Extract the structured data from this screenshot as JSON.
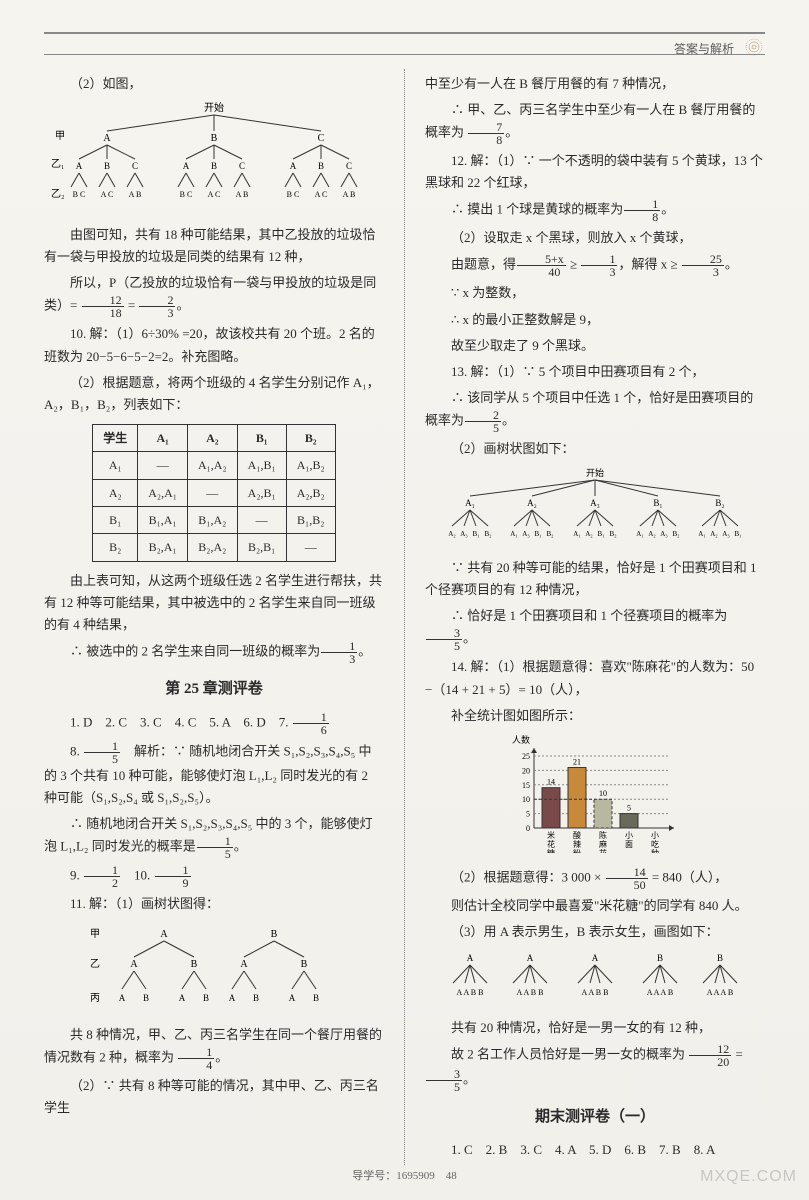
{
  "header": {
    "title": "答案与解析"
  },
  "left": {
    "p1": "（2）如图，",
    "tree1": {
      "root": "开始",
      "level1_label": "甲",
      "level1": [
        "A",
        "B",
        "C"
      ],
      "level2_label": "乙₁",
      "level2": [
        "A",
        "B",
        "C"
      ],
      "level3_label": "乙₂",
      "level3_groups": [
        [
          "B C",
          "A C",
          "A B"
        ],
        [
          "B C",
          "A C",
          "A B"
        ],
        [
          "B C",
          "A C",
          "A B"
        ]
      ]
    },
    "p2a": "由图可知，共有 18 种可能结果，其中乙投放的垃圾恰有一袋与甲投放的垃圾是同类的结果有 12 种，",
    "p2b_pre": "所以，P（乙投放的垃圾恰有一袋与甲投放的垃圾是同类）= ",
    "p2b_f1": {
      "n": "12",
      "d": "18"
    },
    "p2b_mid": " = ",
    "p2b_f2": {
      "n": "2",
      "d": "3"
    },
    "p2b_post": "。",
    "p3a": "10. 解：（1）6÷30% =20，故该校共有 20 个班。2 名的班数为 20−5−6−5−2=2。补充图略。",
    "p3b": "（2）根据题意，将两个班级的 4 名学生分别记作 A₁，A₂，B₁，B₂，列表如下：",
    "table": {
      "headers": [
        "学生",
        "A₁",
        "A₂",
        "B₁",
        "B₂"
      ],
      "rows": [
        [
          "A₁",
          "—",
          "A₁,A₂",
          "A₁,B₁",
          "A₁,B₂"
        ],
        [
          "A₂",
          "A₂,A₁",
          "—",
          "A₂,B₁",
          "A₂,B₂"
        ],
        [
          "B₁",
          "B₁,A₁",
          "B₁,A₂",
          "—",
          "B₁,B₂"
        ],
        [
          "B₂",
          "B₂,A₁",
          "B₂,A₂",
          "B₂,B₁",
          "—"
        ]
      ]
    },
    "p4": "由上表可知，从这两个班级任选 2 名学生进行帮扶，共有 12 种等可能结果，其中被选中的 2 名学生来自同一班级的有 4 种结果，",
    "p5_pre": "∴ 被选中的 2 名学生来自同一班级的概率为",
    "p5_f": {
      "n": "1",
      "d": "3"
    },
    "p5_post": "。",
    "section": "第 25 章测评卷",
    "q_line1_a": "1. D　2. C　3. C　4. C　5. A　6. D　7. ",
    "q_line1_f": {
      "n": "1",
      "d": "6"
    },
    "q8_pre": "8. ",
    "q8_f": {
      "n": "1",
      "d": "5"
    },
    "q8_mid": "　解析：∵ 随机地闭合开关 S₁,S₂,S₃,S₄,S₅ 中的 3 个共有 10 种可能，能够使灯泡 L₁,L₂ 同时发光的有 2 种可能（S₁,S₂,S₄ 或 S₁,S₂,S₅）。",
    "q8b_pre": "∴ 随机地闭合开关 S₁,S₂,S₃,S₄,S₅ 中的 3 个，能够使灯泡 L₁,L₂ 同时发光的概率是",
    "q8b_f": {
      "n": "1",
      "d": "5"
    },
    "q8b_post": "。",
    "q9_pre": "9. ",
    "q9_f": {
      "n": "1",
      "d": "2"
    },
    "q10_pre": "　10. ",
    "q10_f": {
      "n": "1",
      "d": "9"
    },
    "q11": "11. 解：（1）画树状图得：",
    "tree2": {
      "levels": [
        "甲",
        "乙",
        "丙"
      ],
      "root_children": [
        "A",
        "B"
      ],
      "lvl2": [
        "A",
        "B",
        "A",
        "B"
      ],
      "lvl3": [
        "A",
        "B",
        "A",
        "B",
        "A",
        "B",
        "A",
        "B"
      ]
    },
    "p6_pre": "共 8 种情况，甲、乙、丙三名学生在同一个餐厅用餐的情况数有 2 种，概率为 ",
    "p6_f": {
      "n": "1",
      "d": "4"
    },
    "p6_post": "。",
    "p7": "（2）∵ 共有 8 种等可能的情况，其中甲、乙、丙三名学生"
  },
  "right": {
    "p1": "中至少有一人在 B 餐厅用餐的有 7 种情况，",
    "p2_pre": "∴ 甲、乙、丙三名学生中至少有一人在 B 餐厅用餐的概率为 ",
    "p2_f": {
      "n": "7",
      "d": "8"
    },
    "p2_post": "。",
    "p3": "12. 解：（1）∵ 一个不透明的袋中装有 5 个黄球，13 个黑球和 22 个红球，",
    "p4_pre": "∴ 摸出 1 个球是黄球的概率为",
    "p4_f": {
      "n": "1",
      "d": "8"
    },
    "p4_post": "。",
    "p5": "（2）设取走 x 个黑球，则放入 x 个黄球，",
    "p6_pre": "由题意，得",
    "p6_f1": {
      "n": "5+x",
      "d": "40"
    },
    "p6_mid1": " ≥ ",
    "p6_f2": {
      "n": "1",
      "d": "3"
    },
    "p6_mid2": "，解得 x ≥ ",
    "p6_f3": {
      "n": "25",
      "d": "3"
    },
    "p6_post": "。",
    "p7": "∵ x 为整数，",
    "p8": "∴ x 的最小正整数解是 9，",
    "p9": "故至少取走了 9 个黑球。",
    "p10": "13. 解：（1）∵ 5 个项目中田赛项目有 2 个，",
    "p11_pre": "∴ 该同学从 5 个项目中任选 1 个，恰好是田赛项目的概率为",
    "p11_f": {
      "n": "2",
      "d": "5"
    },
    "p11_post": "。",
    "p12": "（2）画树状图如下：",
    "tree3": {
      "root": "开始",
      "lvl1": [
        "A₁",
        "A₂",
        "A₃",
        "B₁",
        "B₂"
      ],
      "lvl2_each": [
        "A₂",
        "A₃",
        "B₁",
        "B₂"
      ]
    },
    "p13": "∵ 共有 20 种等可能的结果，恰好是 1 个田赛项目和 1 个径赛项目的有 12 种情况，",
    "p14_pre": "∴ 恰好是 1 个田赛项目和 1 个径赛项目的概率为",
    "p14_f": {
      "n": "3",
      "d": "5"
    },
    "p14_post": "。",
    "p15": "14. 解：（1）根据题意得：喜欢\"陈麻花\"的人数为：50 −（14 + 21 + 5）= 10（人），",
    "p16": "补全统计图如图所示：",
    "chart": {
      "ylabel": "人数",
      "ymax": 25,
      "yticks": [
        5,
        10,
        15,
        20,
        25
      ],
      "categories": [
        "米花糖",
        "酸辣粉",
        "陈麻花",
        "小面",
        "小吃种类"
      ],
      "values": [
        14,
        21,
        10,
        5,
        0
      ],
      "bar_colors": [
        "#7a4a4a",
        "#c78a3a",
        "#b8b8a0",
        "#6a6a5a",
        "#cccccc"
      ],
      "new_bar_index": 2,
      "background": "#f4f2ed",
      "grid": "#888"
    },
    "p17_pre": "（2）根据题意得：3 000 × ",
    "p17_f": {
      "n": "14",
      "d": "50"
    },
    "p17_post": " = 840（人），",
    "p18": "则估计全校同学中最喜爱\"米花糖\"的同学有 840 人。",
    "p19": "（3）用 A 表示男生，B 表示女生，画图如下：",
    "tree4": {
      "lvl1": [
        "A",
        "A",
        "A",
        "B",
        "B"
      ],
      "lvl2": [
        "A A B B",
        "A A B B",
        "A A B B",
        "A A A B",
        "A A A B"
      ]
    },
    "p20": "共有 20 种情况，恰好是一男一女的有 12 种，",
    "p21_pre": "故 2 名工作人员恰好是一男一女的概率为 ",
    "p21_f1": {
      "n": "12",
      "d": "20"
    },
    "p21_mid": " = ",
    "p21_f2": {
      "n": "3",
      "d": "5"
    },
    "p21_post": "。",
    "section": "期末测评卷（一）",
    "q_line": "1. C　2. B　3. C　4. A　5. D　6. B　7. B　8. A"
  },
  "footer": {
    "text": "导学号：1695909",
    "page": "48"
  },
  "watermark": "MXQE.COM"
}
